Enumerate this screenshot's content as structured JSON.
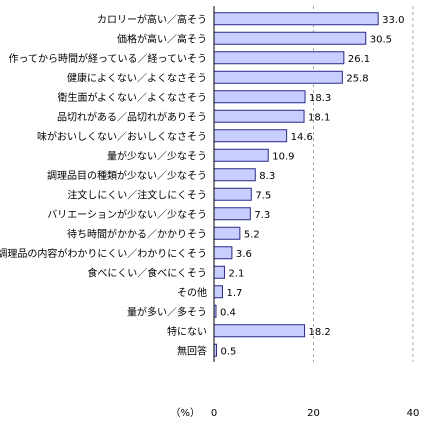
{
  "chart_data": {
    "type": "bar",
    "orientation": "horizontal",
    "categories": [
      "カロリーが高い／高そう",
      "価格が高い／高そう",
      "作ってから時間が経っている／経っていそう",
      "健康によくない／よくなさそう",
      "衛生面がよくない／よくなさそう",
      "品切れがある／品切れがありそう",
      "味がおいしくない／おいしくなさそう",
      "量が少ない／少なそう",
      "調理品目の種類が少ない／少なそう",
      "注文しにくい／注文しにくそう",
      "バリエーションが少ない／少なそう",
      "待ち時間がかかる／かかりそう",
      "調理品の内容がわかりにくい／わかりにくそう",
      "食べにくい／食べにくそう",
      "その他",
      "量が多い／多そう",
      "特にない",
      "無回答"
    ],
    "values": [
      33.0,
      30.5,
      26.1,
      25.8,
      18.3,
      18.1,
      14.6,
      10.9,
      8.3,
      7.5,
      7.3,
      5.2,
      3.6,
      2.1,
      1.7,
      0.4,
      18.2,
      0.5
    ],
    "value_labels": [
      "33.0",
      "30.5",
      "26.1",
      "25.8",
      "18.3",
      "18.1",
      "14.6",
      "10.9",
      "8.3",
      "7.5",
      "7.3",
      "5.2",
      "3.6",
      "2.1",
      "1.7",
      "0.4",
      "18.2",
      "0.5"
    ],
    "xlim": [
      0,
      40
    ],
    "xticks": [
      "0",
      "20",
      "40"
    ],
    "unit_label": "（%）",
    "grid": "dashed-vertical",
    "bar_color": "#c8ceff",
    "bar_edge_color": "#2a2a8a"
  }
}
